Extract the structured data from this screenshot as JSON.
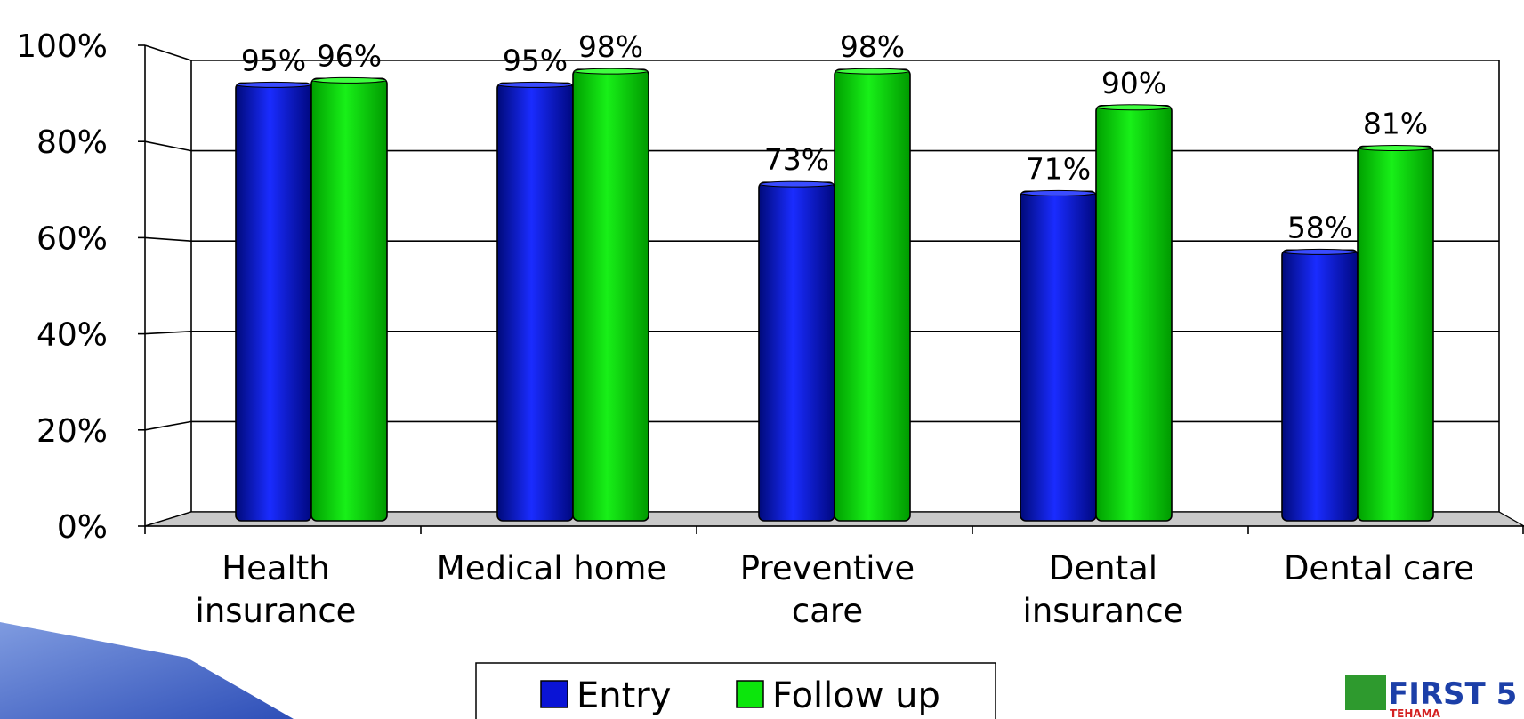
{
  "chart_data": {
    "type": "bar",
    "title": "",
    "xlabel": "",
    "ylabel": "",
    "ylim": [
      0,
      100
    ],
    "yticks": [
      "0%",
      "20%",
      "40%",
      "60%",
      "80%",
      "100%"
    ],
    "categories": [
      [
        "Health",
        "insurance"
      ],
      [
        "Medical home"
      ],
      [
        "Preventive",
        "care"
      ],
      [
        "Dental",
        "insurance"
      ],
      [
        "Dental care"
      ]
    ],
    "series": [
      {
        "name": "Entry",
        "values": [
          95,
          95,
          73,
          71,
          58
        ],
        "labels": [
          "95%",
          "95%",
          "73%",
          "71%",
          "58%"
        ]
      },
      {
        "name": "Follow up",
        "values": [
          96,
          98,
          98,
          90,
          81
        ],
        "labels": [
          "96%",
          "98%",
          "98%",
          "90%",
          "81%"
        ]
      }
    ],
    "legend": "bottom-center",
    "grid": true
  },
  "colors": {
    "entry": "#0a14d6",
    "follow_up": "#0ce60c",
    "accent_shape": "#4a6fd0"
  },
  "logo": {
    "line1": "FIRST 5",
    "line2": "TEHAMA"
  }
}
